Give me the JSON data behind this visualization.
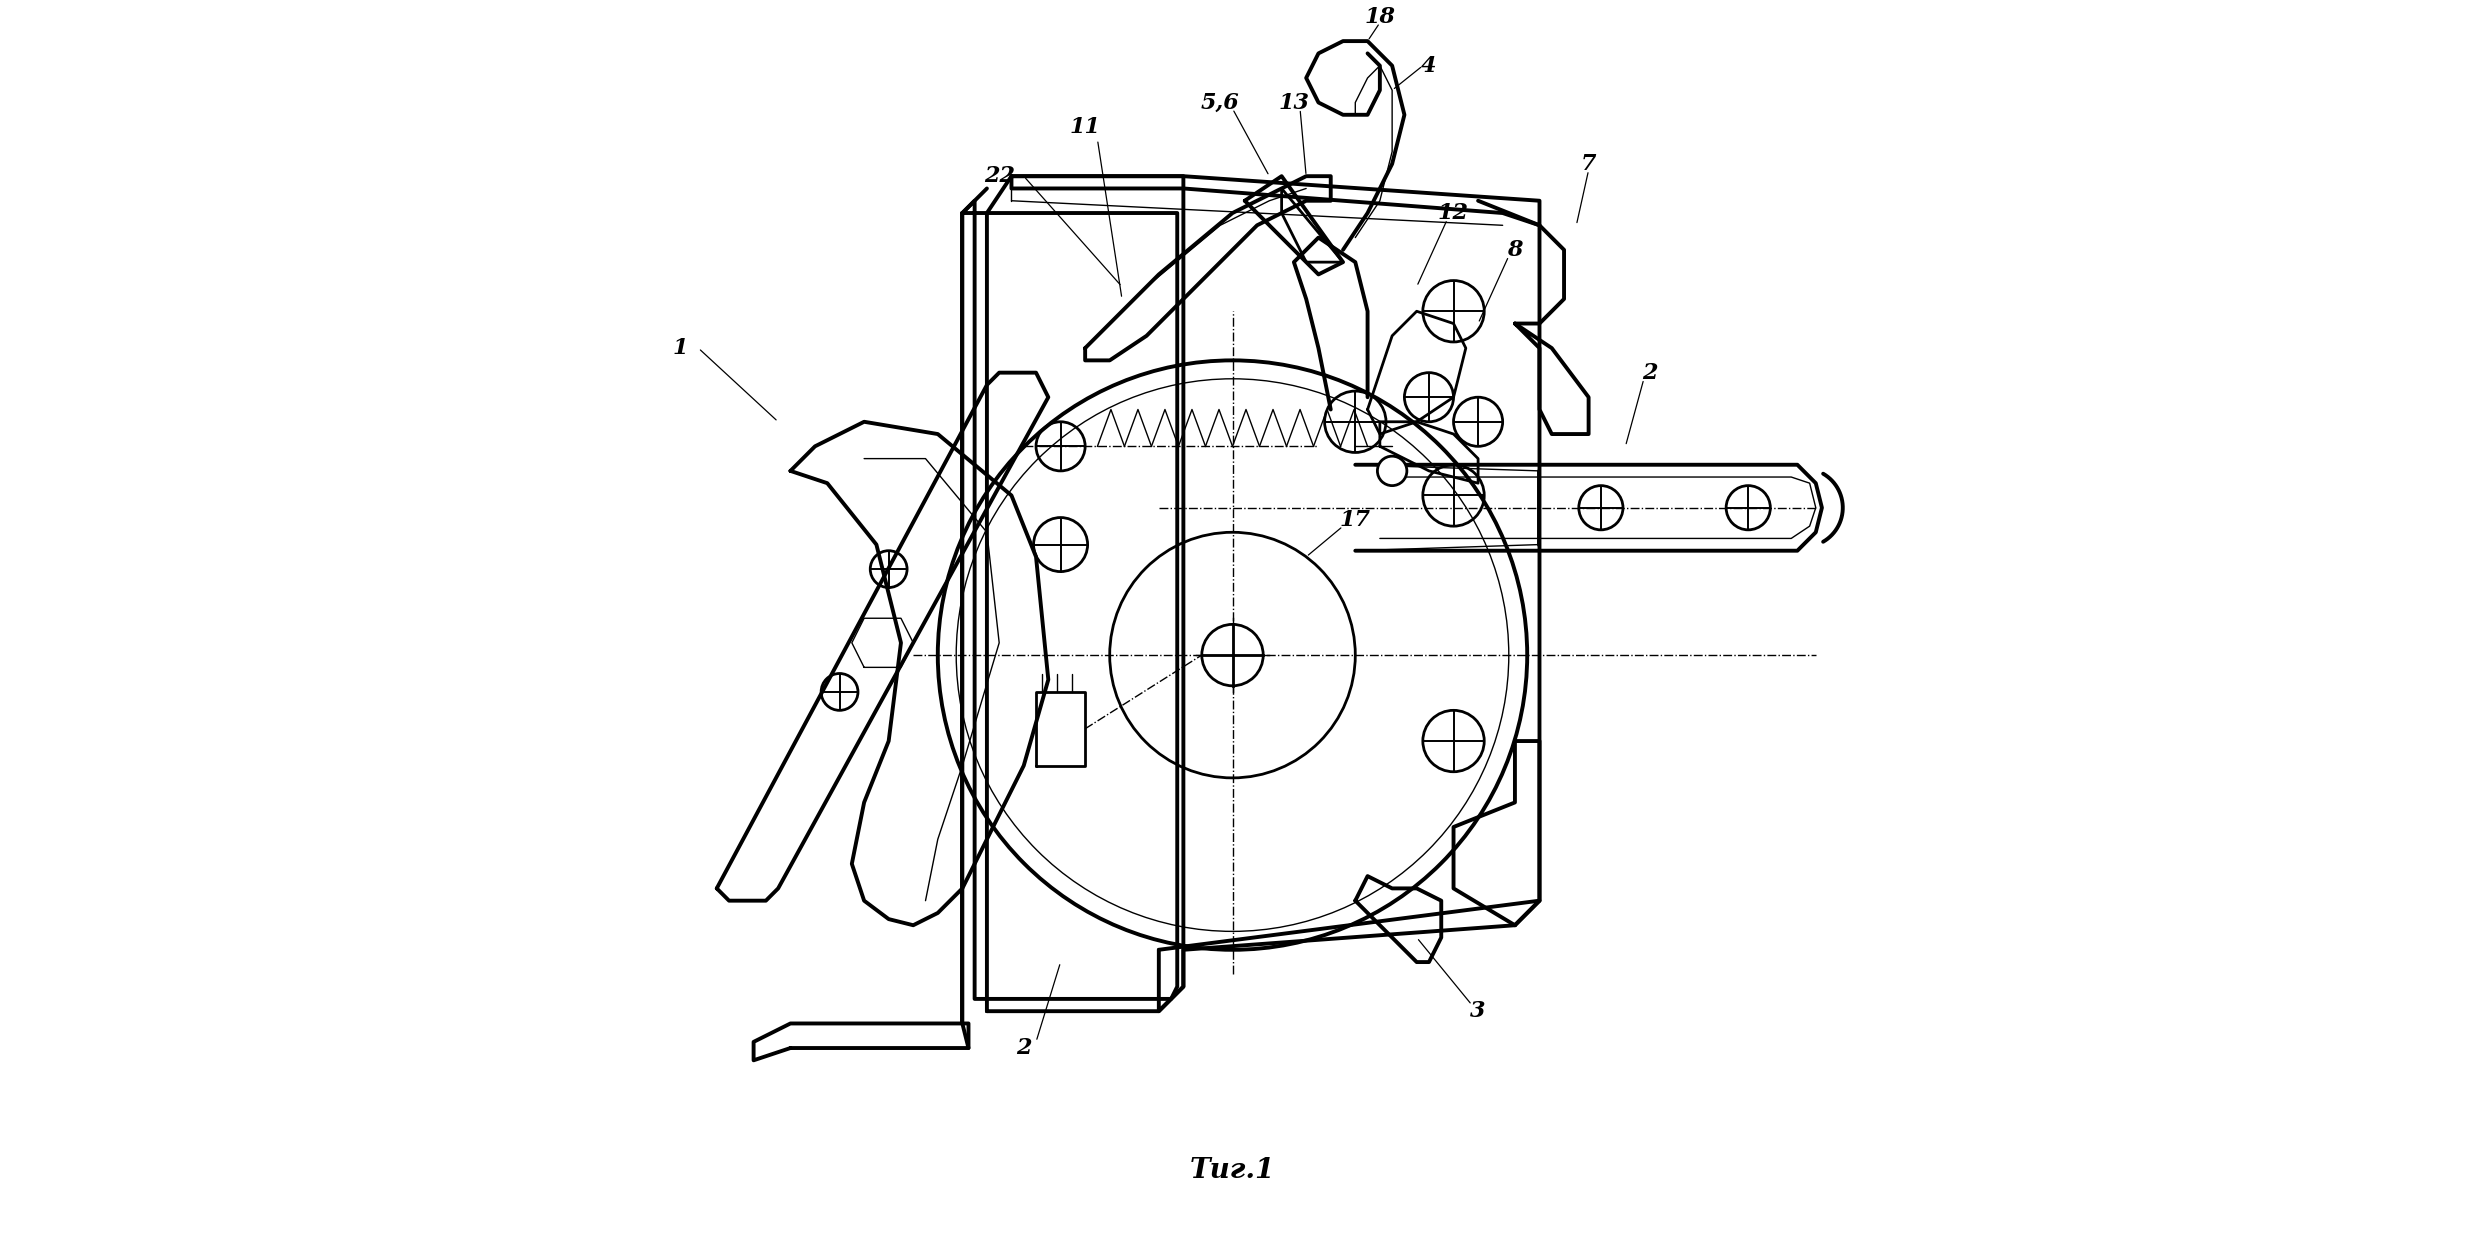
{
  "title": "Τиг.1",
  "bg": "#ffffff",
  "lc": "#000000",
  "lw_main": 2.0,
  "lw_thick": 2.8,
  "lw_thin": 1.0,
  "lw_label": 0.8,
  "fig_w": 24.65,
  "fig_h": 12.35
}
